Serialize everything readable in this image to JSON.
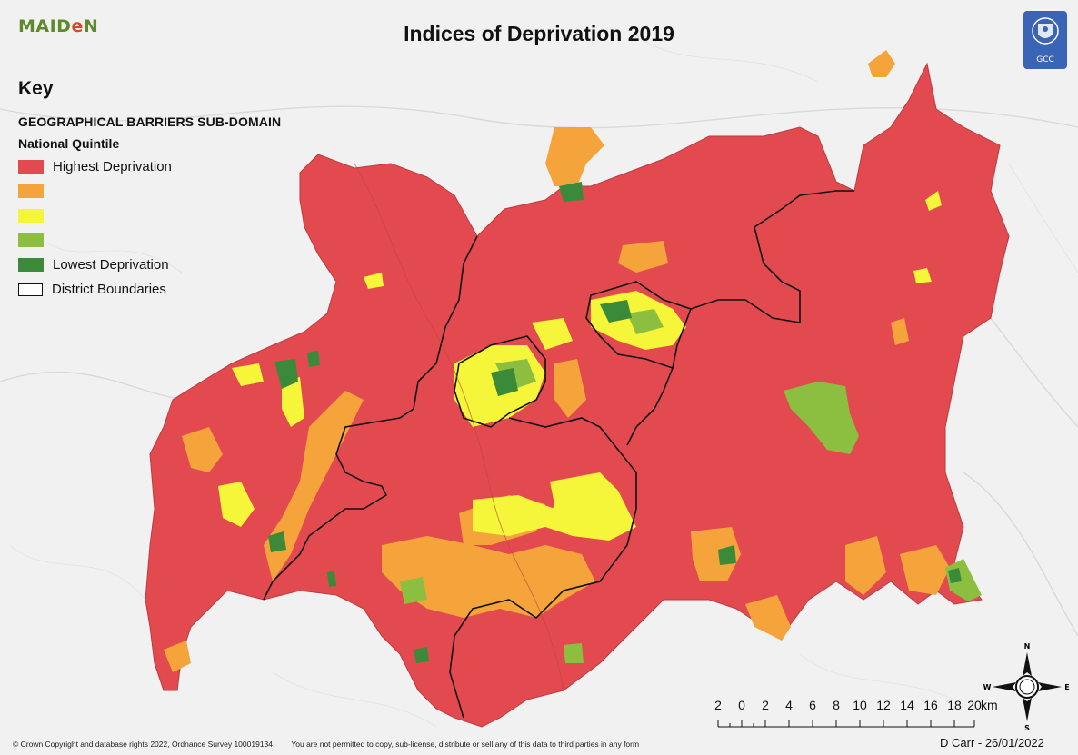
{
  "logo": {
    "text_left": "MAID",
    "text_accent": "e",
    "text_right": "N"
  },
  "title": "Indices of Deprivation 2019",
  "crest": {
    "text": "GCC"
  },
  "legend": {
    "heading": "Key",
    "subtitle": "GEOGRAPHICAL BARRIERS SUB-DOMAIN",
    "group_title": "National Quintile",
    "items": [
      {
        "label": "Highest Deprivation",
        "color": "#e34a4f"
      },
      {
        "label": "",
        "color": "#f4a43a"
      },
      {
        "label": "",
        "color": "#f5f53a"
      },
      {
        "label": "",
        "color": "#8cbf3f"
      },
      {
        "label": "Lowest Deprivation",
        "color": "#3a8a3a"
      }
    ],
    "boundary_label": "District Boundaries"
  },
  "scale": {
    "labels": [
      "2",
      "0",
      "2",
      "4",
      "6",
      "8",
      "10",
      "12",
      "14",
      "16",
      "18",
      "20"
    ],
    "unit": "km"
  },
  "north_arrow": {
    "n": "N",
    "s": "S",
    "e": "E",
    "w": "W"
  },
  "footer": {
    "copyright": "© Crown Copyright and database rights 2022, Ordnance Survey 100019134.",
    "notice": "You are not permitted to copy, sub-license, distribute or sell any of this data to third parties in any form",
    "author_date": "D Carr - 26/01/2022"
  },
  "colors": {
    "highest": "#e34a4f",
    "high": "#f4a43a",
    "middle": "#f5f53a",
    "low": "#8cbf3f",
    "lowest": "#3a8a3a",
    "boundary": "#111111"
  }
}
